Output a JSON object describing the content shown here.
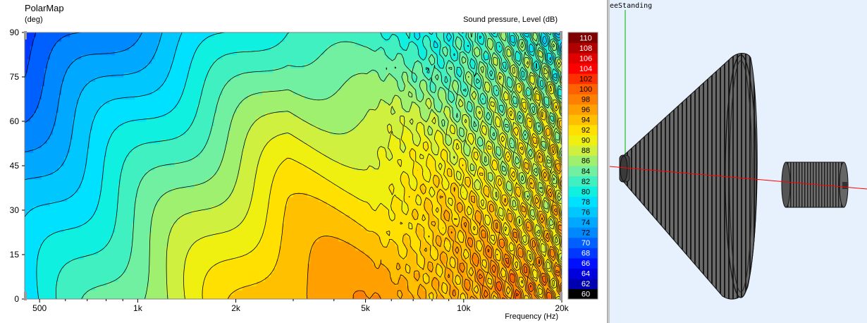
{
  "chart_panel": {
    "title": "PolarMap",
    "y_unit": "(deg)",
    "colorbar_title": "Sound pressure, Level  (dB)",
    "x_axis_label": "Frequency  (Hz)"
  },
  "viewport": {
    "label": "eeStanding"
  },
  "colors": {
    "viewport_background": "#e6f1fd",
    "axis_x_line": "#ff0000",
    "axis_y_line": "#00b000",
    "speaker_body": "#5a5a5a"
  },
  "chart_data": {
    "type": "heatmap",
    "title": "PolarMap",
    "xlabel": "Frequency  (Hz)",
    "ylabel": "(deg)",
    "x_scale": "log",
    "xlim": [
      450,
      20000
    ],
    "ylim": [
      0,
      90
    ],
    "x_ticks": [
      {
        "value": 500,
        "label": "500"
      },
      {
        "value": 1000,
        "label": "1k"
      },
      {
        "value": 2000,
        "label": "2k"
      },
      {
        "value": 5000,
        "label": "5k"
      },
      {
        "value": 10000,
        "label": "10k"
      },
      {
        "value": 20000,
        "label": "20k"
      }
    ],
    "x_minor_ticks": [
      600,
      700,
      800,
      900,
      3000,
      4000,
      6000,
      7000,
      8000,
      9000
    ],
    "y_ticks": [
      0,
      15,
      30,
      45,
      60,
      75,
      90
    ],
    "colorbar": {
      "title": "Sound pressure, Level  (dB)",
      "min": 60,
      "max": 110,
      "labels": [
        60,
        62,
        64,
        66,
        68,
        70,
        72,
        74,
        76,
        78,
        80,
        82,
        84,
        86,
        88,
        90,
        92,
        94,
        96,
        98,
        100,
        102,
        104,
        106,
        108,
        110
      ],
      "colors": [
        {
          "level": 60,
          "color": "#000000"
        },
        {
          "level": 62,
          "color": "#0000b0"
        },
        {
          "level": 64,
          "color": "#0000dd"
        },
        {
          "level": 66,
          "color": "#0010ff"
        },
        {
          "level": 68,
          "color": "#0038ff"
        },
        {
          "level": 70,
          "color": "#0060ff"
        },
        {
          "level": 72,
          "color": "#0088ff"
        },
        {
          "level": 74,
          "color": "#00a8ff"
        },
        {
          "level": 76,
          "color": "#00c8ff"
        },
        {
          "level": 78,
          "color": "#00e0ff"
        },
        {
          "level": 80,
          "color": "#10f0e0"
        },
        {
          "level": 82,
          "color": "#40f0c0"
        },
        {
          "level": 84,
          "color": "#70f0a0"
        },
        {
          "level": 86,
          "color": "#a0f070"
        },
        {
          "level": 88,
          "color": "#d0f040"
        },
        {
          "level": 90,
          "color": "#f0f010"
        },
        {
          "level": 92,
          "color": "#ffe000"
        },
        {
          "level": 94,
          "color": "#ffc000"
        },
        {
          "level": 96,
          "color": "#ffa000"
        },
        {
          "level": 98,
          "color": "#ff8000"
        },
        {
          "level": 100,
          "color": "#ff6000"
        },
        {
          "level": 102,
          "color": "#ff3000"
        },
        {
          "level": 104,
          "color": "#ff0000"
        },
        {
          "level": 106,
          "color": "#e00000"
        },
        {
          "level": 108,
          "color": "#b00000"
        },
        {
          "level": 110,
          "color": "#800000"
        }
      ]
    },
    "grid": false,
    "contour_lines": true,
    "z_estimate_points": [
      {
        "freq": 500,
        "angle": 0,
        "db": 80
      },
      {
        "freq": 1000,
        "angle": 0,
        "db": 84
      },
      {
        "freq": 2000,
        "angle": 0,
        "db": 93
      },
      {
        "freq": 3000,
        "angle": 0,
        "db": 98
      },
      {
        "freq": 5000,
        "angle": 0,
        "db": 97
      },
      {
        "freq": 10000,
        "angle": 0,
        "db": 96
      },
      {
        "freq": 500,
        "angle": 45,
        "db": 72
      },
      {
        "freq": 2000,
        "angle": 45,
        "db": 82
      },
      {
        "freq": 5000,
        "angle": 45,
        "db": 88
      },
      {
        "freq": 10000,
        "angle": 45,
        "db": 86
      },
      {
        "freq": 500,
        "angle": 90,
        "db": 66
      },
      {
        "freq": 1000,
        "angle": 90,
        "db": 72
      },
      {
        "freq": 2000,
        "angle": 90,
        "db": 76
      },
      {
        "freq": 5000,
        "angle": 90,
        "db": 78
      },
      {
        "freq": 10000,
        "angle": 90,
        "db": 76
      }
    ]
  }
}
